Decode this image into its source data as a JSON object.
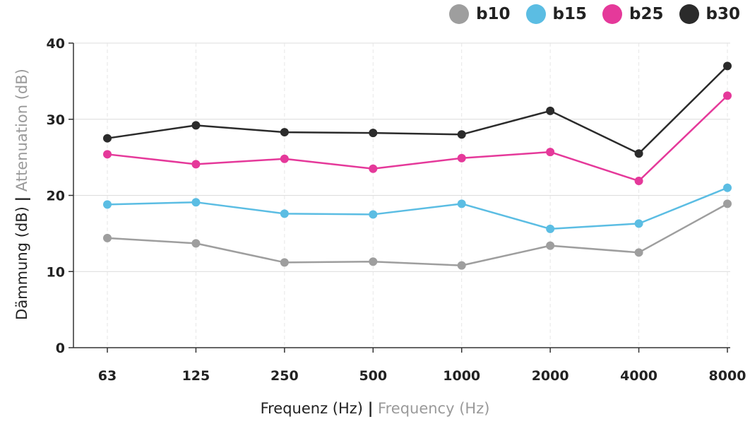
{
  "chart_data": {
    "type": "line",
    "x": [
      "63",
      "125",
      "250",
      "500",
      "1000",
      "2000",
      "4000",
      "8000"
    ],
    "ylim": [
      0,
      40
    ],
    "yticks": [
      0,
      10,
      20,
      30,
      40
    ],
    "xlabel_main": "Frequenz (Hz)",
    "xlabel_sep": "|",
    "xlabel_en": "Frequency (Hz)",
    "ylabel_main": "Dämmung (dB)",
    "ylabel_sep": "|",
    "ylabel_en": "Attenuation (dB)",
    "legend_position": "top-right",
    "grid": true,
    "series": [
      {
        "name": "b10",
        "color": "#9e9e9e",
        "values": [
          14.4,
          13.7,
          11.2,
          11.3,
          10.8,
          13.4,
          12.5,
          18.9
        ]
      },
      {
        "name": "b15",
        "color": "#5bbde3",
        "values": [
          18.8,
          19.1,
          17.6,
          17.5,
          18.9,
          15.6,
          16.3,
          21.0
        ]
      },
      {
        "name": "b25",
        "color": "#e5399a",
        "values": [
          25.4,
          24.1,
          24.8,
          23.5,
          24.9,
          25.7,
          21.9,
          33.1
        ]
      },
      {
        "name": "b30",
        "color": "#2b2b2b",
        "values": [
          27.5,
          29.2,
          28.3,
          28.2,
          28.0,
          31.1,
          25.5,
          37.0
        ]
      }
    ]
  }
}
